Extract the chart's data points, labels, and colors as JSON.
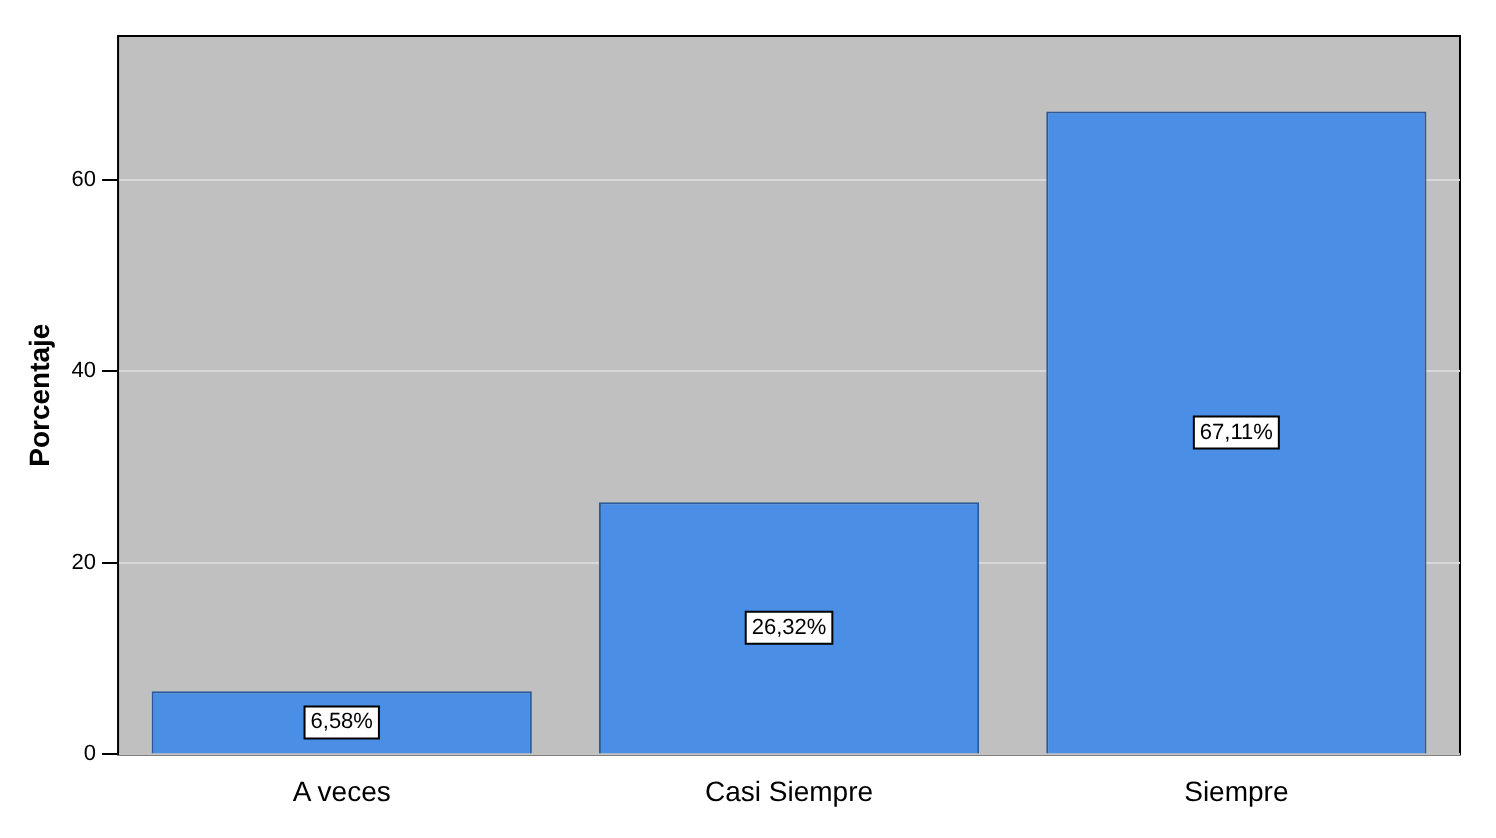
{
  "chart_data": {
    "type": "bar",
    "ylabel": "Porcentaje",
    "categories": [
      "A veces",
      "Casi Siempre",
      "Siempre"
    ],
    "values": [
      6.58,
      26.32,
      67.11
    ],
    "color": "#4a8ee6",
    "value_labels": [
      "6,58%",
      "26,32%",
      "67,11%"
    ],
    "ylim": [
      0,
      75
    ],
    "yticks": [
      0,
      20,
      40,
      60
    ],
    "grid": "y",
    "legend": false
  }
}
